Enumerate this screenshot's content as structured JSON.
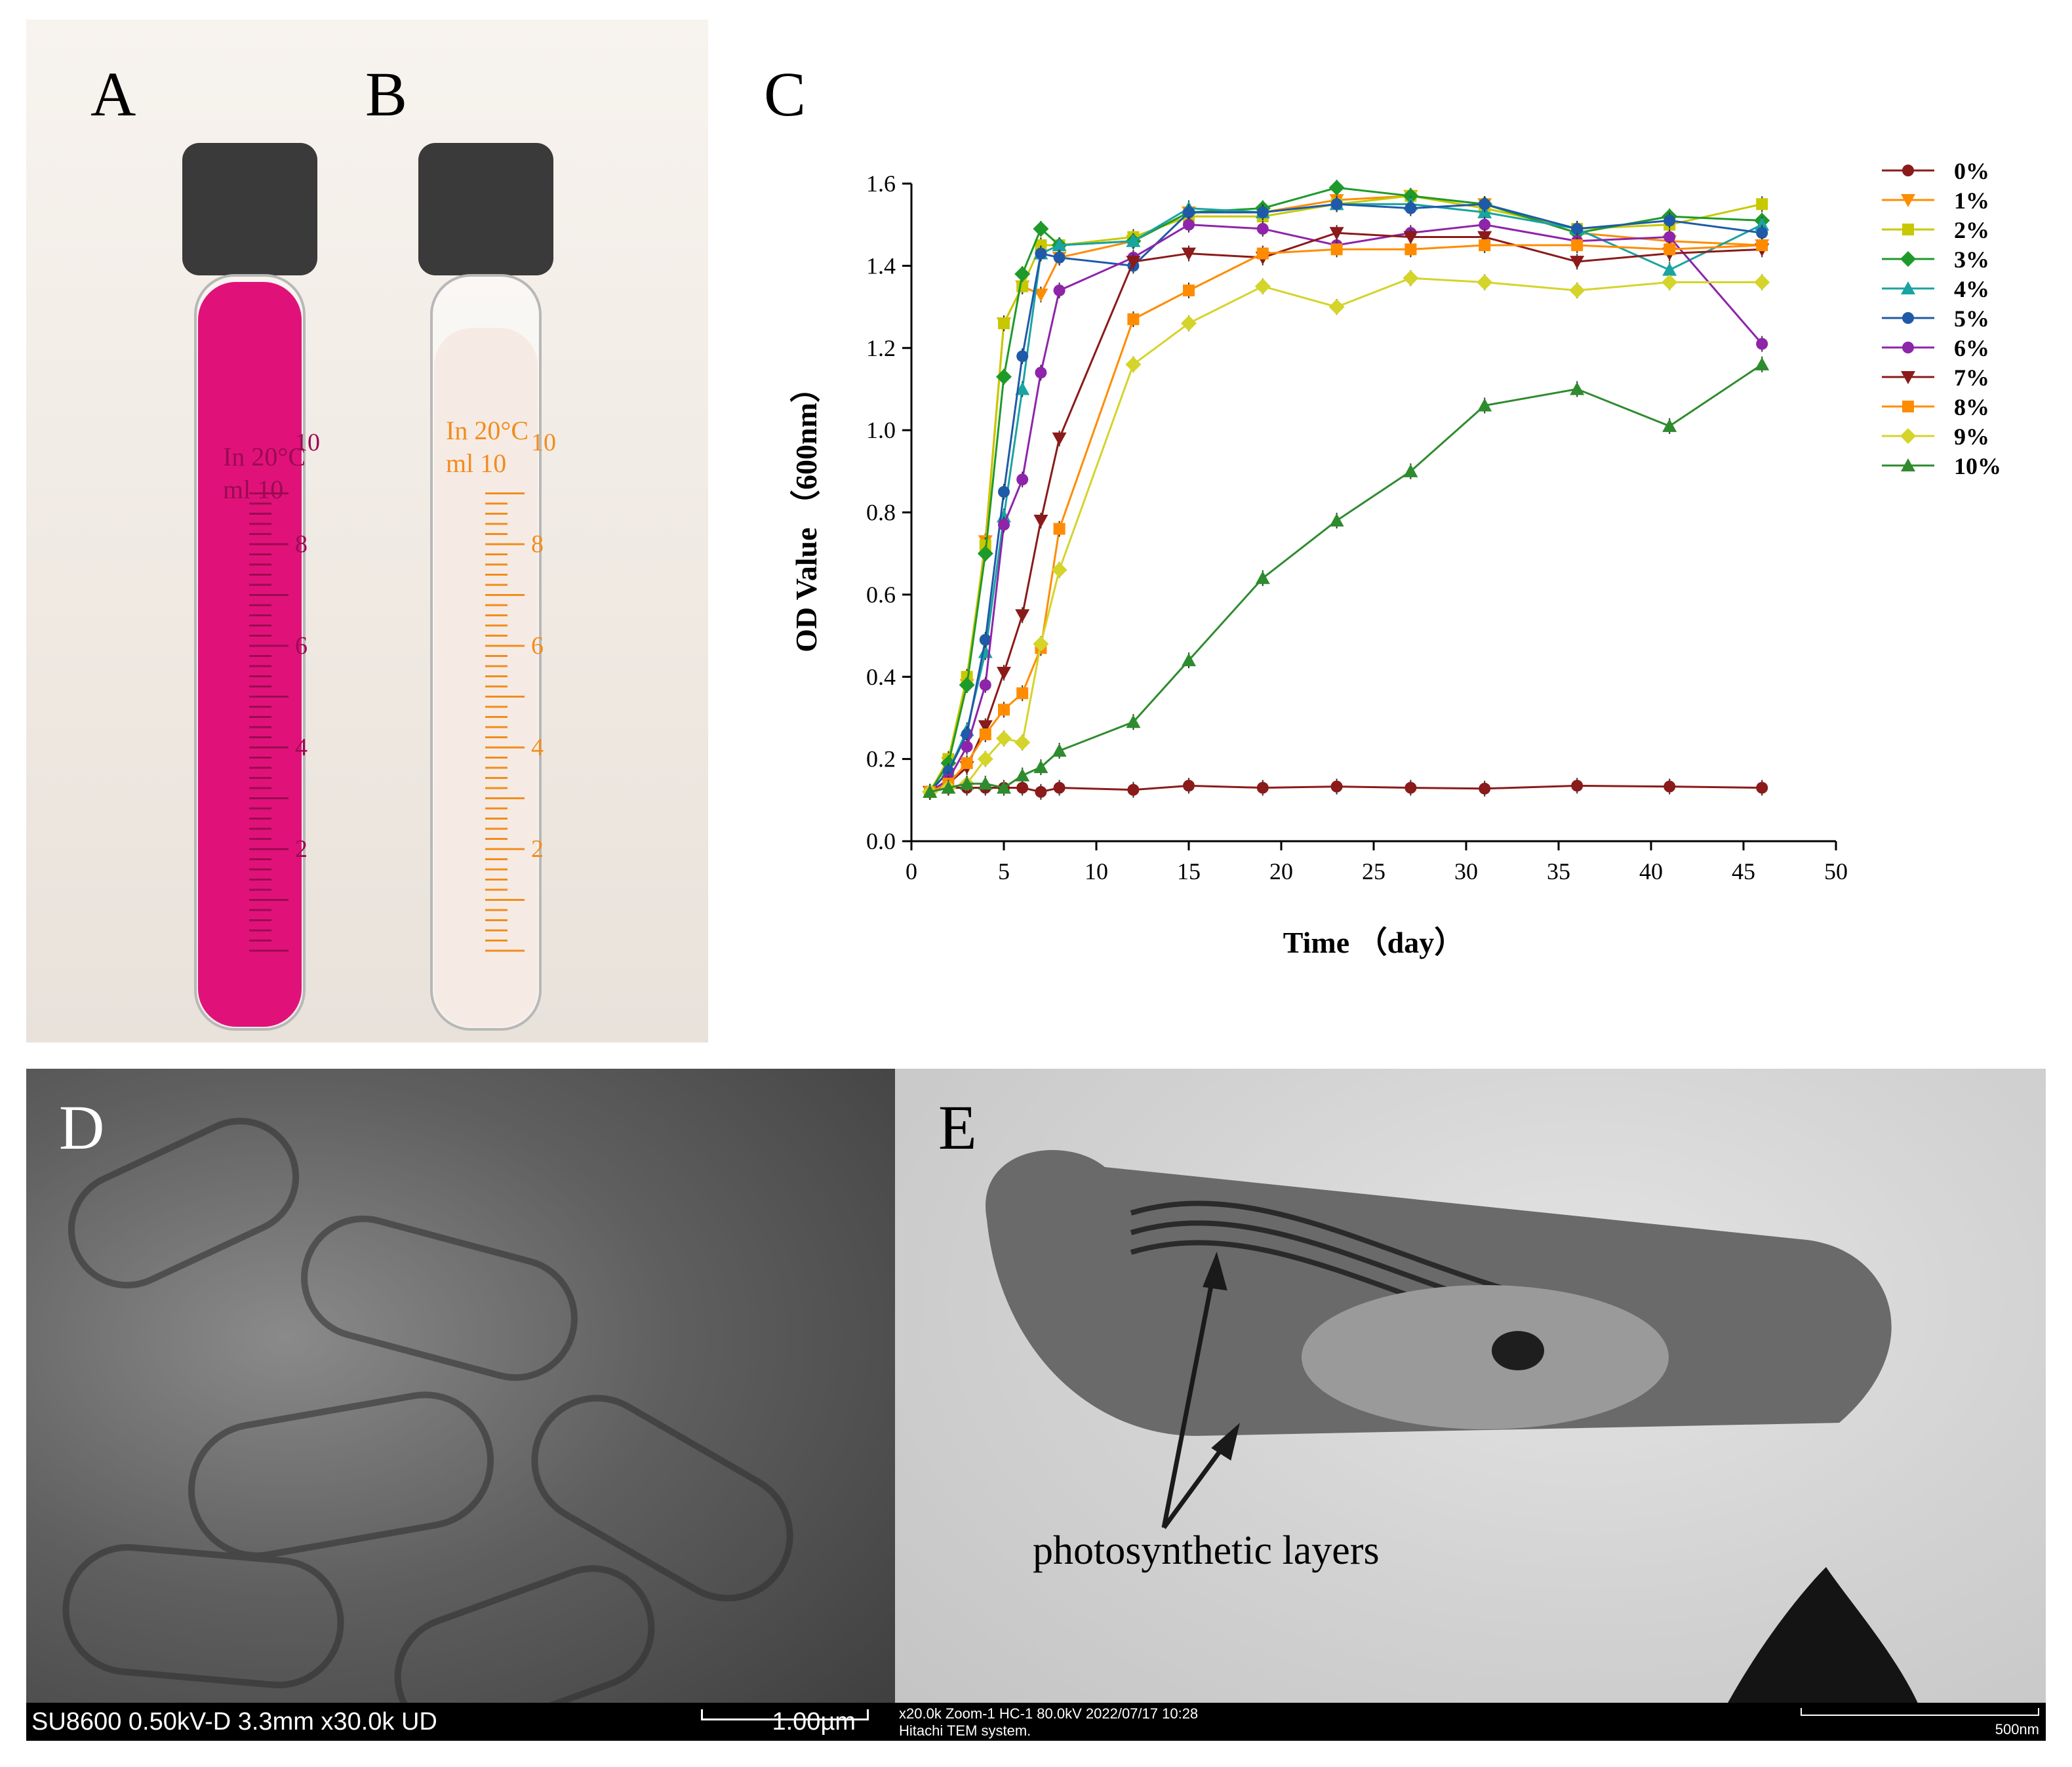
{
  "panels": {
    "a": {
      "letter": "A"
    },
    "b": {
      "letter": "B"
    },
    "c": {
      "letter": "C"
    },
    "d": {
      "letter": "D",
      "info": "SU8600 0.50kV-D 3.3mm x30.0k UD",
      "scale": "1.00µm"
    },
    "e": {
      "letter": "E",
      "info_line1": "x20.0k Zoom-1 HC-1 80.0kV 2022/07/17 10:28",
      "info_line2": "Hitachi TEM system.",
      "scale": "500nm",
      "annotation": "photosynthetic layers"
    }
  },
  "tubes": {
    "a": {
      "liquid_color": "#e0127a",
      "cap_color": "#3a3a3a",
      "label_line1": "In 20°C",
      "label_line2": "ml 10",
      "graduations": [
        "2",
        "4",
        "6",
        "8",
        "10"
      ]
    },
    "b": {
      "liquid_color": "#f6ebe4",
      "cap_color": "#3a3a3a",
      "label_line1": "In 20°C",
      "label_line2": "ml 10",
      "graduations": [
        "2",
        "4",
        "6",
        "8",
        "10"
      ]
    }
  },
  "chart_data": {
    "type": "line",
    "title": "",
    "xlabel": "Time （day）",
    "ylabel": "OD Value （600nm）",
    "xlim": [
      0,
      50
    ],
    "ylim": [
      0,
      1.6
    ],
    "xticks": [
      "0",
      "5",
      "10",
      "15",
      "20",
      "25",
      "30",
      "35",
      "40",
      "45",
      "50"
    ],
    "yticks": [
      "0.0",
      "0.2",
      "0.4",
      "0.6",
      "0.8",
      "1.0",
      "1.2",
      "1.4",
      "1.6"
    ],
    "legend_position": "right",
    "error_bars": true,
    "series": [
      {
        "name": "0%",
        "color": "#8b1a1a",
        "marker": "circle",
        "x": [
          1,
          2,
          3,
          4,
          5,
          6,
          7,
          8,
          12,
          15,
          19,
          23,
          27,
          31,
          36,
          41,
          46
        ],
        "y": [
          0.12,
          0.13,
          0.13,
          0.13,
          0.13,
          0.13,
          0.12,
          0.13,
          0.125,
          0.135,
          0.13,
          0.133,
          0.13,
          0.128,
          0.135,
          0.133,
          0.13
        ]
      },
      {
        "name": "1%",
        "color": "#ff8c00",
        "marker": "triangle-down",
        "x": [
          1,
          2,
          3,
          4,
          5,
          6,
          7,
          8,
          12,
          15,
          19,
          23,
          27,
          31,
          36,
          41,
          46
        ],
        "y": [
          0.12,
          0.19,
          0.38,
          0.73,
          1.26,
          1.35,
          1.33,
          1.42,
          1.46,
          1.53,
          1.53,
          1.56,
          1.57,
          1.55,
          1.48,
          1.46,
          1.45
        ]
      },
      {
        "name": "2%",
        "color": "#c8c800",
        "marker": "square",
        "x": [
          1,
          2,
          3,
          4,
          5,
          6,
          7,
          8,
          12,
          15,
          19,
          23,
          27,
          31,
          36,
          41,
          46
        ],
        "y": [
          0.12,
          0.2,
          0.4,
          0.72,
          1.26,
          1.35,
          1.45,
          1.45,
          1.47,
          1.52,
          1.52,
          1.55,
          1.57,
          1.54,
          1.49,
          1.5,
          1.55
        ]
      },
      {
        "name": "3%",
        "color": "#1e9a2a",
        "marker": "diamond",
        "x": [
          1,
          2,
          3,
          4,
          5,
          6,
          7,
          8,
          12,
          15,
          19,
          23,
          27,
          31,
          36,
          41,
          46
        ],
        "y": [
          0.12,
          0.19,
          0.38,
          0.7,
          1.13,
          1.38,
          1.49,
          1.45,
          1.46,
          1.53,
          1.54,
          1.59,
          1.57,
          1.55,
          1.48,
          1.52,
          1.51
        ]
      },
      {
        "name": "4%",
        "color": "#1aa3a3",
        "marker": "triangle-up",
        "x": [
          1,
          2,
          3,
          4,
          5,
          6,
          7,
          8,
          12,
          15,
          19,
          23,
          27,
          31,
          36,
          41,
          46
        ],
        "y": [
          0.12,
          0.17,
          0.27,
          0.46,
          0.79,
          1.1,
          1.43,
          1.45,
          1.46,
          1.54,
          1.53,
          1.55,
          1.55,
          1.53,
          1.49,
          1.39,
          1.5
        ]
      },
      {
        "name": "5%",
        "color": "#1f5aa8",
        "marker": "circle",
        "x": [
          1,
          2,
          3,
          4,
          5,
          6,
          7,
          8,
          12,
          15,
          19,
          23,
          27,
          31,
          36,
          41,
          46
        ],
        "y": [
          0.12,
          0.17,
          0.26,
          0.49,
          0.85,
          1.18,
          1.43,
          1.42,
          1.4,
          1.53,
          1.53,
          1.55,
          1.54,
          1.55,
          1.49,
          1.51,
          1.48
        ]
      },
      {
        "name": "6%",
        "color": "#8e24aa",
        "marker": "circle",
        "x": [
          1,
          2,
          3,
          4,
          5,
          6,
          7,
          8,
          12,
          15,
          19,
          23,
          27,
          31,
          36,
          41,
          46
        ],
        "y": [
          0.12,
          0.15,
          0.23,
          0.38,
          0.77,
          0.88,
          1.14,
          1.34,
          1.42,
          1.5,
          1.49,
          1.45,
          1.48,
          1.5,
          1.46,
          1.47,
          1.21
        ]
      },
      {
        "name": "7%",
        "color": "#8b1a1a",
        "marker": "triangle-down",
        "x": [
          1,
          2,
          3,
          4,
          5,
          6,
          7,
          8,
          12,
          15,
          19,
          23,
          27,
          31,
          36,
          41,
          46
        ],
        "y": [
          0.12,
          0.14,
          0.18,
          0.28,
          0.41,
          0.55,
          0.78,
          0.98,
          1.41,
          1.43,
          1.42,
          1.48,
          1.47,
          1.47,
          1.41,
          1.43,
          1.44
        ]
      },
      {
        "name": "8%",
        "color": "#ff8c00",
        "marker": "square",
        "x": [
          1,
          2,
          3,
          4,
          5,
          6,
          7,
          8,
          12,
          15,
          19,
          23,
          27,
          31,
          36,
          41,
          46
        ],
        "y": [
          0.12,
          0.14,
          0.19,
          0.26,
          0.32,
          0.36,
          0.47,
          0.76,
          1.27,
          1.34,
          1.43,
          1.44,
          1.44,
          1.45,
          1.45,
          1.44,
          1.45
        ]
      },
      {
        "name": "9%",
        "color": "#d4d42a",
        "marker": "diamond",
        "x": [
          1,
          2,
          3,
          4,
          5,
          6,
          7,
          8,
          12,
          15,
          19,
          23,
          27,
          31,
          36,
          41,
          46
        ],
        "y": [
          0.12,
          0.13,
          0.14,
          0.2,
          0.25,
          0.24,
          0.48,
          0.66,
          1.16,
          1.26,
          1.35,
          1.3,
          1.37,
          1.36,
          1.34,
          1.36,
          1.36
        ]
      },
      {
        "name": "10%",
        "color": "#2e8b2e",
        "marker": "triangle-up",
        "x": [
          1,
          2,
          3,
          4,
          5,
          6,
          7,
          8,
          12,
          15,
          19,
          23,
          27,
          31,
          36,
          41,
          46
        ],
        "y": [
          0.12,
          0.13,
          0.14,
          0.14,
          0.13,
          0.16,
          0.18,
          0.22,
          0.29,
          0.44,
          0.64,
          0.78,
          0.9,
          1.06,
          1.1,
          1.01,
          1.16
        ]
      }
    ]
  }
}
